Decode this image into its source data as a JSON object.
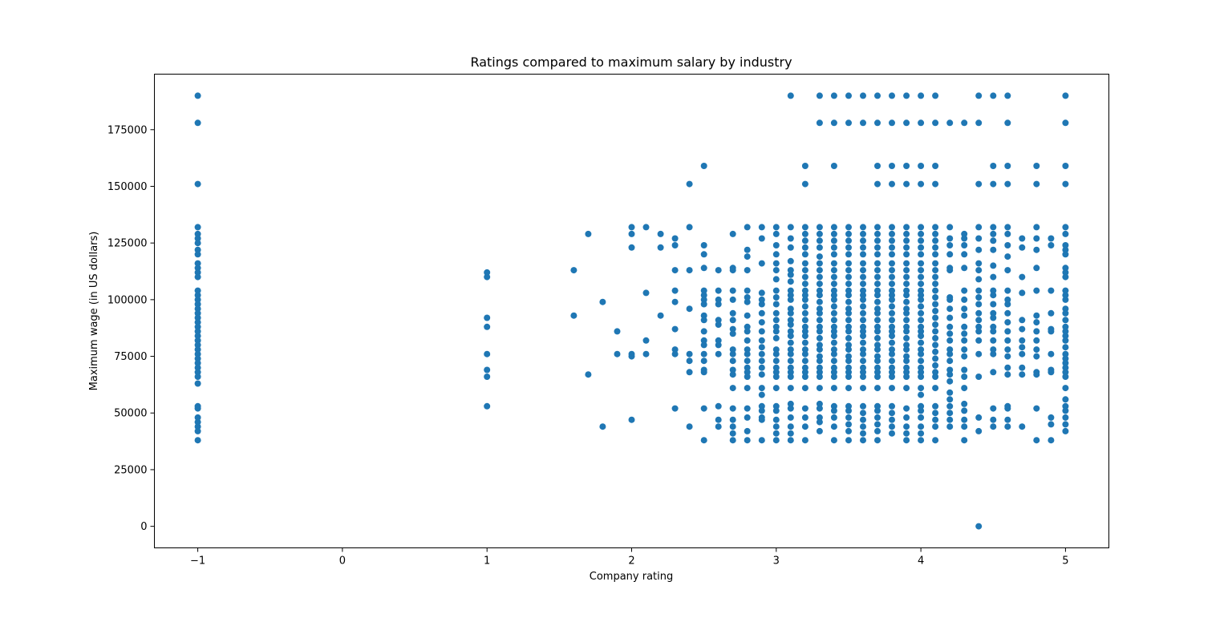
{
  "chart_data": {
    "type": "scatter",
    "title": "Ratings compared to maximum salary by industry",
    "xlabel": "Company rating",
    "ylabel": "Maximum wage (in US dollars)",
    "xlim": [
      -1.3,
      5.3
    ],
    "ylim": [
      -9500,
      199500
    ],
    "x_ticks": [
      -1,
      0,
      1,
      2,
      3,
      4,
      5
    ],
    "x_tick_labels": [
      "−1",
      "0",
      "1",
      "2",
      "3",
      "4",
      "5"
    ],
    "y_ticks": [
      0,
      25000,
      50000,
      75000,
      100000,
      125000,
      150000,
      175000
    ],
    "y_tick_labels": [
      "0",
      "25000",
      "50000",
      "75000",
      "100000",
      "125000",
      "150000",
      "175000"
    ],
    "grid": false,
    "marker_color": "#1f77b4",
    "point_groups": [
      {
        "x": -1.0,
        "y": [
          190000,
          178000,
          151000,
          132000,
          129000,
          127000,
          125000,
          122000,
          120000,
          116000,
          114000,
          112000,
          110000,
          104000,
          102000,
          100000,
          98000,
          96000,
          94000,
          92000,
          90000,
          88000,
          86000,
          84000,
          82000,
          80000,
          78000,
          76000,
          74000,
          72000,
          70000,
          68000,
          66000,
          63000,
          53000,
          52000,
          48000,
          46000,
          44000,
          42000,
          38000
        ]
      },
      {
        "x": 1.0,
        "y": [
          112000,
          110000,
          92000,
          88000,
          76000,
          69000,
          66000,
          53000
        ]
      },
      {
        "x": 1.6,
        "y": [
          113000,
          93000
        ]
      },
      {
        "x": 1.7,
        "y": [
          129000,
          67000
        ]
      },
      {
        "x": 1.8,
        "y": [
          99000,
          44000
        ]
      },
      {
        "x": 1.9,
        "y": [
          86000,
          76000
        ]
      },
      {
        "x": 2.0,
        "y": [
          132000,
          129000,
          123000,
          76000,
          75000,
          47000
        ]
      },
      {
        "x": 2.1,
        "y": [
          132000,
          103000,
          82000,
          76000
        ]
      },
      {
        "x": 2.2,
        "y": [
          129000,
          123000,
          93000
        ]
      },
      {
        "x": 2.3,
        "y": [
          127000,
          124000,
          113000,
          104000,
          99000,
          87000,
          78000,
          76000,
          52000
        ]
      },
      {
        "x": 2.4,
        "y": [
          151000,
          132000,
          113000,
          96000,
          76000,
          73000,
          68000,
          44000
        ]
      },
      {
        "x": 2.5,
        "y": [
          159000,
          124000,
          120000,
          114000,
          104000,
          102000,
          100000,
          98000,
          93000,
          91000,
          86000,
          82000,
          80000,
          76000,
          73000,
          69000,
          68000,
          52000,
          38000
        ]
      },
      {
        "x": 2.6,
        "y": [
          113000,
          104000,
          100000,
          98000,
          91000,
          89000,
          82000,
          80000,
          76000,
          53000,
          47000,
          44000
        ]
      },
      {
        "x": 2.7,
        "y": [
          129000,
          114000,
          113000,
          104000,
          100000,
          94000,
          91000,
          87000,
          85000,
          78000,
          76000,
          73000,
          69000,
          67000,
          61000,
          52000,
          47000,
          44000,
          41000,
          38000
        ]
      },
      {
        "x": 2.8,
        "y": [
          132000,
          122000,
          119000,
          113000,
          104000,
          101000,
          99000,
          93000,
          88000,
          86000,
          82000,
          78000,
          76000,
          73000,
          70000,
          68000,
          66000,
          61000,
          52000,
          48000,
          42000,
          38000
        ]
      },
      {
        "x": 2.9,
        "y": [
          132000,
          127000,
          116000,
          103000,
          100000,
          98000,
          94000,
          90000,
          86000,
          82000,
          79000,
          76000,
          73000,
          70000,
          67000,
          61000,
          58000,
          53000,
          51000,
          48000,
          47000,
          38000
        ]
      },
      {
        "x": 3.0,
        "y": [
          132000,
          129000,
          124000,
          120000,
          116000,
          113000,
          109000,
          104000,
          101000,
          98000,
          94000,
          91000,
          88000,
          86000,
          83000,
          78000,
          76000,
          73000,
          70000,
          68000,
          66000,
          61000,
          53000,
          51000,
          47000,
          44000,
          41000,
          38000
        ]
      },
      {
        "x": 3.1,
        "y": [
          190000,
          132000,
          127000,
          123000,
          117000,
          113000,
          111000,
          108000,
          104000,
          102000,
          100000,
          96000,
          94000,
          91000,
          89000,
          86000,
          84000,
          81000,
          78000,
          76000,
          73000,
          70000,
          68000,
          66000,
          61000,
          54000,
          52000,
          48000,
          44000,
          41000,
          38000
        ]
      },
      {
        "x": 3.2,
        "y": [
          159000,
          151000,
          132000,
          129000,
          126000,
          123000,
          120000,
          116000,
          113000,
          110000,
          107000,
          104000,
          102000,
          100000,
          97000,
          94000,
          91000,
          88000,
          86000,
          84000,
          81000,
          78000,
          76000,
          73000,
          70000,
          68000,
          66000,
          61000,
          52000,
          48000,
          44000,
          38000
        ]
      },
      {
        "x": 3.3,
        "y": [
          190000,
          178000,
          132000,
          129000,
          126000,
          123000,
          119000,
          116000,
          113000,
          110000,
          107000,
          104000,
          102000,
          99000,
          96000,
          94000,
          91000,
          88000,
          86000,
          83000,
          80000,
          78000,
          75000,
          73000,
          70000,
          68000,
          66000,
          61000,
          54000,
          52000,
          48000,
          46000,
          42000
        ]
      },
      {
        "x": 3.4,
        "y": [
          190000,
          178000,
          159000,
          132000,
          129000,
          126000,
          123000,
          120000,
          116000,
          113000,
          110000,
          107000,
          104000,
          102000,
          100000,
          97000,
          94000,
          91000,
          88000,
          86000,
          84000,
          81000,
          78000,
          76000,
          73000,
          70000,
          68000,
          66000,
          61000,
          53000,
          51000,
          48000,
          44000,
          38000
        ]
      },
      {
        "x": 3.5,
        "y": [
          190000,
          178000,
          132000,
          129000,
          126000,
          123000,
          120000,
          116000,
          113000,
          110000,
          107000,
          104000,
          102000,
          99000,
          96000,
          94000,
          91000,
          88000,
          86000,
          83000,
          80000,
          78000,
          75000,
          73000,
          70000,
          68000,
          66000,
          61000,
          53000,
          51000,
          48000,
          45000,
          42000,
          38000
        ]
      },
      {
        "x": 3.6,
        "y": [
          190000,
          178000,
          132000,
          129000,
          126000,
          123000,
          120000,
          116000,
          113000,
          110000,
          107000,
          104000,
          102000,
          100000,
          97000,
          94000,
          91000,
          88000,
          86000,
          84000,
          81000,
          78000,
          76000,
          73000,
          70000,
          68000,
          66000,
          61000,
          53000,
          50000,
          47000,
          44000,
          41000,
          38000
        ]
      },
      {
        "x": 3.7,
        "y": [
          190000,
          178000,
          159000,
          151000,
          132000,
          129000,
          126000,
          123000,
          120000,
          116000,
          113000,
          110000,
          107000,
          104000,
          102000,
          99000,
          96000,
          94000,
          91000,
          88000,
          86000,
          83000,
          80000,
          78000,
          75000,
          73000,
          70000,
          68000,
          66000,
          61000,
          53000,
          51000,
          48000,
          45000,
          42000,
          38000
        ]
      },
      {
        "x": 3.8,
        "y": [
          190000,
          178000,
          159000,
          151000,
          132000,
          129000,
          126000,
          123000,
          120000,
          116000,
          113000,
          110000,
          107000,
          104000,
          102000,
          100000,
          97000,
          94000,
          91000,
          88000,
          86000,
          84000,
          81000,
          78000,
          76000,
          73000,
          70000,
          68000,
          66000,
          61000,
          53000,
          50000,
          47000,
          44000,
          41000
        ]
      },
      {
        "x": 3.9,
        "y": [
          190000,
          178000,
          159000,
          151000,
          132000,
          129000,
          126000,
          123000,
          120000,
          116000,
          113000,
          110000,
          107000,
          104000,
          102000,
          99000,
          96000,
          94000,
          91000,
          88000,
          86000,
          83000,
          80000,
          78000,
          75000,
          73000,
          70000,
          68000,
          66000,
          61000,
          52000,
          48000,
          44000,
          41000,
          38000
        ]
      },
      {
        "x": 4.0,
        "y": [
          190000,
          178000,
          159000,
          151000,
          132000,
          129000,
          126000,
          123000,
          120000,
          116000,
          113000,
          110000,
          107000,
          104000,
          102000,
          100000,
          97000,
          94000,
          91000,
          88000,
          86000,
          84000,
          81000,
          78000,
          76000,
          73000,
          70000,
          68000,
          66000,
          61000,
          58000,
          53000,
          51000,
          48000,
          44000,
          41000,
          38000
        ]
      },
      {
        "x": 4.1,
        "y": [
          190000,
          178000,
          159000,
          151000,
          132000,
          129000,
          126000,
          123000,
          120000,
          116000,
          113000,
          110000,
          107000,
          104000,
          101000,
          98000,
          95000,
          92000,
          89000,
          86000,
          83000,
          80000,
          77000,
          74000,
          71000,
          68000,
          66000,
          61000,
          53000,
          50000,
          47000,
          44000,
          38000
        ]
      },
      {
        "x": 4.2,
        "y": [
          178000,
          132000,
          127000,
          124000,
          120000,
          114000,
          113000,
          101000,
          100000,
          96000,
          92000,
          88000,
          85000,
          82000,
          78000,
          76000,
          73000,
          69000,
          67000,
          64000,
          59000,
          56000,
          53000,
          50000,
          47000,
          44000
        ]
      },
      {
        "x": 4.3,
        "y": [
          178000,
          129000,
          127000,
          124000,
          120000,
          114000,
          104000,
          100000,
          96000,
          93000,
          88000,
          85000,
          82000,
          78000,
          75000,
          69000,
          66000,
          61000,
          54000,
          51000,
          47000,
          44000,
          38000
        ]
      },
      {
        "x": 4.4,
        "y": [
          190000,
          178000,
          151000,
          132000,
          127000,
          122000,
          116000,
          113000,
          109000,
          104000,
          101000,
          98000,
          94000,
          91000,
          88000,
          86000,
          82000,
          76000,
          66000,
          48000,
          42000,
          0
        ]
      },
      {
        "x": 4.5,
        "y": [
          190000,
          159000,
          151000,
          132000,
          129000,
          126000,
          122000,
          115000,
          110000,
          104000,
          102000,
          98000,
          94000,
          92000,
          88000,
          86000,
          82000,
          78000,
          76000,
          68000,
          52000,
          47000,
          44000
        ]
      },
      {
        "x": 4.6,
        "y": [
          190000,
          178000,
          159000,
          151000,
          132000,
          129000,
          124000,
          119000,
          113000,
          104000,
          100000,
          98000,
          94000,
          90000,
          86000,
          82000,
          78000,
          75000,
          70000,
          67000,
          53000,
          52000,
          47000,
          44000
        ]
      },
      {
        "x": 4.7,
        "y": [
          127000,
          123000,
          110000,
          103000,
          91000,
          87000,
          82000,
          79000,
          76000,
          70000,
          67000,
          44000
        ]
      },
      {
        "x": 4.8,
        "y": [
          159000,
          151000,
          132000,
          127000,
          122000,
          114000,
          104000,
          93000,
          90000,
          86000,
          82000,
          78000,
          75000,
          68000,
          67000,
          52000,
          38000
        ]
      },
      {
        "x": 4.9,
        "y": [
          127000,
          124000,
          104000,
          94000,
          87000,
          86000,
          76000,
          69000,
          68000,
          48000,
          45000,
          38000
        ]
      },
      {
        "x": 5.0,
        "y": [
          190000,
          178000,
          159000,
          151000,
          132000,
          129000,
          124000,
          122000,
          120000,
          114000,
          112000,
          110000,
          104000,
          102000,
          100000,
          96000,
          94000,
          91000,
          88000,
          86000,
          84000,
          82000,
          79000,
          76000,
          74000,
          72000,
          70000,
          68000,
          66000,
          61000,
          56000,
          53000,
          51000,
          48000,
          45000,
          42000
        ]
      }
    ]
  }
}
